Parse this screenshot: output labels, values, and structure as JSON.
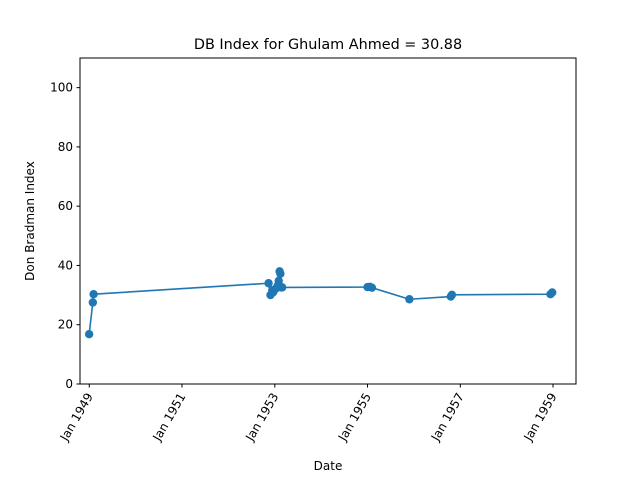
{
  "chart_data": {
    "type": "line",
    "title": "DB Index for Ghulam Ahmed = 30.88",
    "xlabel": "Date",
    "ylabel": "Don Bradman Index",
    "ylim": [
      0,
      110
    ],
    "xlim": [
      "1948-10-20",
      "1959-07-01"
    ],
    "xticks": [
      {
        "label": "Jan 1949",
        "date": "1949-01-01"
      },
      {
        "label": "Jan 1951",
        "date": "1951-01-01"
      },
      {
        "label": "Jan 1953",
        "date": "1953-01-01"
      },
      {
        "label": "Jan 1955",
        "date": "1955-01-01"
      },
      {
        "label": "Jan 1957",
        "date": "1957-01-01"
      },
      {
        "label": "Jan 1959",
        "date": "1959-01-01"
      }
    ],
    "yticks": [
      0,
      20,
      40,
      60,
      80,
      100
    ],
    "grid": false,
    "color": "#1f77b4",
    "series": [
      {
        "x": [
          "1948-12-31",
          "1949-01-29",
          "1949-02-04",
          "1952-11-13",
          "1952-11-28",
          "1952-12-12",
          "1952-12-20",
          "1953-01-10",
          "1953-01-24",
          "1953-02-01",
          "1953-02-08",
          "1953-02-14",
          "1953-02-21",
          "1953-02-28",
          "1955-01-01",
          "1955-01-20",
          "1955-02-05",
          "1955-11-27",
          "1956-10-18",
          "1956-10-27",
          "1958-12-12",
          "1958-12-26"
        ],
        "y": [
          16.8,
          27.5,
          30.3,
          34.0,
          30.0,
          31.6,
          31.0,
          32.2,
          33.2,
          34.8,
          38.0,
          37.2,
          32.6,
          32.6,
          32.7,
          32.8,
          32.5,
          28.6,
          29.5,
          30.1,
          30.3,
          30.9
        ]
      }
    ]
  }
}
